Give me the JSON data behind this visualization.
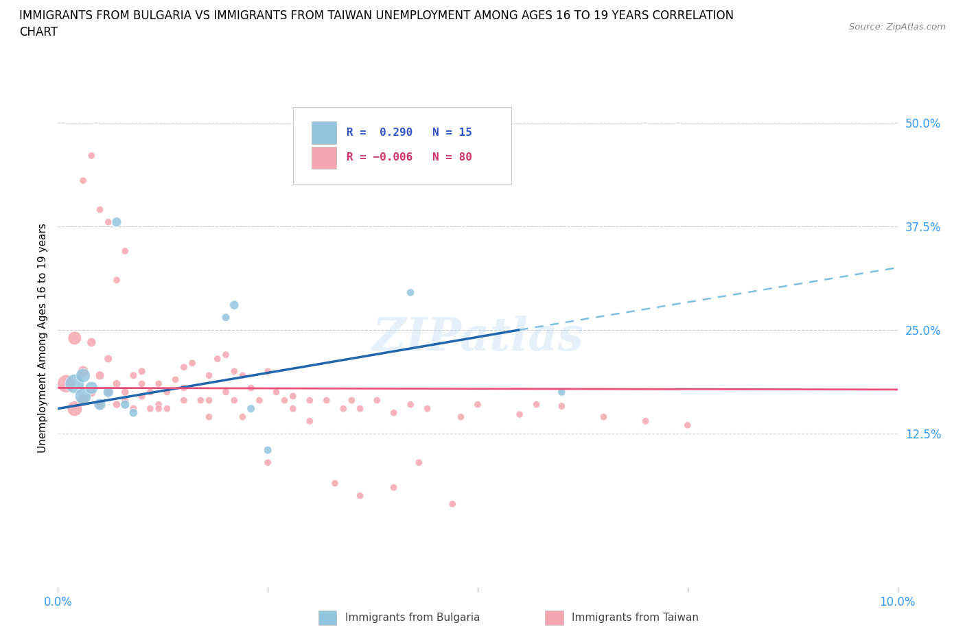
{
  "title": "IMMIGRANTS FROM BULGARIA VS IMMIGRANTS FROM TAIWAN UNEMPLOYMENT AMONG AGES 16 TO 19 YEARS CORRELATION\nCHART",
  "source_text": "Source: ZipAtlas.com",
  "ylabel": "Unemployment Among Ages 16 to 19 years",
  "xlim": [
    0.0,
    0.1
  ],
  "ylim": [
    -0.06,
    0.54
  ],
  "xticks": [
    0.0,
    0.025,
    0.05,
    0.075,
    0.1
  ],
  "xtick_labels": [
    "0.0%",
    "",
    "",
    "",
    "10.0%"
  ],
  "yticks_right": [
    0.125,
    0.25,
    0.375,
    0.5
  ],
  "ytick_labels_right": [
    "12.5%",
    "25.0%",
    "37.5%",
    "50.0%"
  ],
  "r_bulgaria": 0.29,
  "n_bulgaria": 15,
  "r_taiwan": -0.006,
  "n_taiwan": 80,
  "watermark": "ZIPatlas",
  "bulgaria_color": "#92c5de",
  "taiwan_color": "#f4a6b0",
  "blue_line_color": "#2166ac",
  "pink_line_color": "#e8507a",
  "blue_line_x": [
    0.0,
    0.055
  ],
  "blue_line_y": [
    0.155,
    0.25
  ],
  "dashed_line_x": [
    0.055,
    0.1
  ],
  "dashed_line_y": [
    0.25,
    0.325
  ],
  "pink_line_x": [
    0.0,
    0.1
  ],
  "pink_line_y": [
    0.18,
    0.178
  ],
  "bulgaria_scatter_x": [
    0.002,
    0.003,
    0.003,
    0.004,
    0.005,
    0.006,
    0.007,
    0.008,
    0.009,
    0.02,
    0.021,
    0.023,
    0.025,
    0.042,
    0.06
  ],
  "bulgaria_scatter_y": [
    0.185,
    0.17,
    0.195,
    0.18,
    0.16,
    0.175,
    0.38,
    0.16,
    0.15,
    0.265,
    0.28,
    0.155,
    0.105,
    0.295,
    0.175
  ],
  "bulgaria_scatter_size": [
    400,
    280,
    220,
    180,
    150,
    120,
    100,
    90,
    80,
    70,
    90,
    70,
    70,
    65,
    65
  ],
  "taiwan_scatter_x": [
    0.001,
    0.002,
    0.002,
    0.003,
    0.003,
    0.004,
    0.004,
    0.005,
    0.005,
    0.006,
    0.006,
    0.007,
    0.007,
    0.008,
    0.008,
    0.009,
    0.009,
    0.01,
    0.01,
    0.011,
    0.011,
    0.012,
    0.012,
    0.013,
    0.013,
    0.014,
    0.015,
    0.015,
    0.016,
    0.017,
    0.018,
    0.018,
    0.019,
    0.02,
    0.021,
    0.021,
    0.022,
    0.023,
    0.024,
    0.025,
    0.026,
    0.027,
    0.028,
    0.03,
    0.032,
    0.034,
    0.035,
    0.036,
    0.038,
    0.04,
    0.042,
    0.044,
    0.048,
    0.05,
    0.055,
    0.057,
    0.06,
    0.065,
    0.07,
    0.075,
    0.003,
    0.004,
    0.005,
    0.006,
    0.007,
    0.008,
    0.01,
    0.012,
    0.015,
    0.018,
    0.02,
    0.022,
    0.025,
    0.028,
    0.03,
    0.033,
    0.036,
    0.04,
    0.043,
    0.047
  ],
  "taiwan_scatter_y": [
    0.185,
    0.155,
    0.24,
    0.165,
    0.2,
    0.175,
    0.235,
    0.195,
    0.16,
    0.175,
    0.215,
    0.185,
    0.16,
    0.175,
    0.165,
    0.195,
    0.155,
    0.2,
    0.17,
    0.175,
    0.155,
    0.185,
    0.16,
    0.175,
    0.155,
    0.19,
    0.205,
    0.165,
    0.21,
    0.165,
    0.195,
    0.165,
    0.215,
    0.175,
    0.2,
    0.165,
    0.195,
    0.18,
    0.165,
    0.2,
    0.175,
    0.165,
    0.17,
    0.165,
    0.165,
    0.155,
    0.165,
    0.155,
    0.165,
    0.15,
    0.16,
    0.155,
    0.145,
    0.16,
    0.148,
    0.16,
    0.158,
    0.145,
    0.14,
    0.135,
    0.43,
    0.46,
    0.395,
    0.38,
    0.31,
    0.345,
    0.185,
    0.155,
    0.18,
    0.145,
    0.22,
    0.145,
    0.09,
    0.155,
    0.14,
    0.065,
    0.05,
    0.06,
    0.09,
    0.04
  ],
  "taiwan_scatter_size": [
    350,
    250,
    200,
    160,
    130,
    100,
    90,
    85,
    80,
    75,
    70,
    70,
    65,
    65,
    60,
    60,
    60,
    60,
    60,
    55,
    55,
    55,
    55,
    55,
    55,
    55,
    55,
    55,
    55,
    55,
    55,
    55,
    55,
    55,
    55,
    55,
    55,
    55,
    55,
    55,
    55,
    55,
    55,
    55,
    55,
    55,
    55,
    55,
    55,
    55,
    55,
    55,
    55,
    55,
    55,
    55,
    55,
    55,
    55,
    55,
    55,
    55,
    55,
    55,
    55,
    55,
    55,
    55,
    55,
    55,
    55,
    55,
    55,
    55,
    55,
    55,
    55,
    55,
    55,
    55
  ]
}
